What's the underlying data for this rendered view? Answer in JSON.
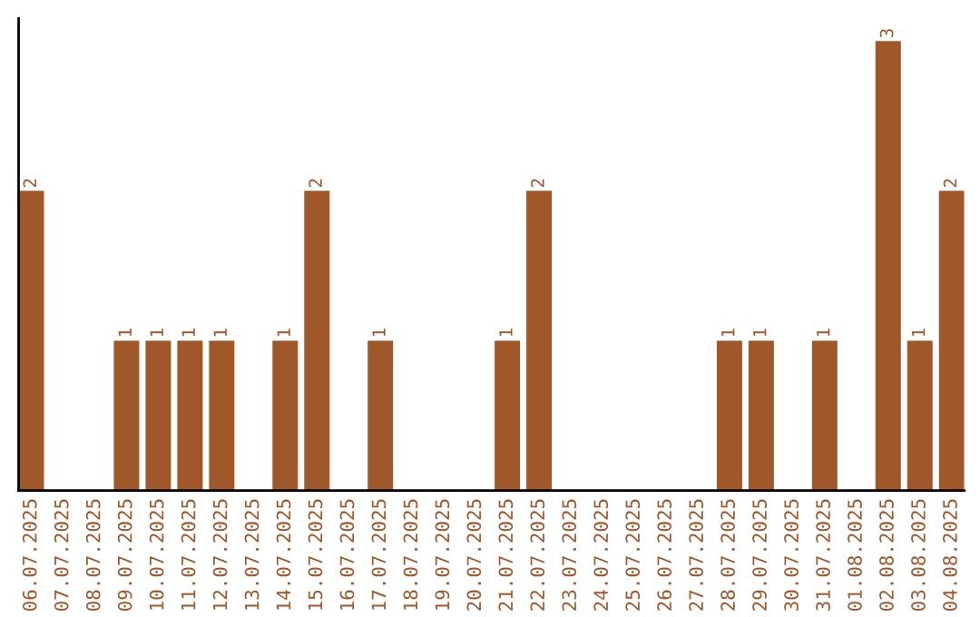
{
  "chart_data": {
    "type": "bar",
    "categories": [
      "06.07.2025",
      "07.07.2025",
      "08.07.2025",
      "09.07.2025",
      "10.07.2025",
      "11.07.2025",
      "12.07.2025",
      "13.07.2025",
      "14.07.2025",
      "15.07.2025",
      "16.07.2025",
      "17.07.2025",
      "18.07.2025",
      "19.07.2025",
      "20.07.2025",
      "21.07.2025",
      "22.07.2025",
      "23.07.2025",
      "24.07.2025",
      "25.07.2025",
      "26.07.2025",
      "27.07.2025",
      "28.07.2025",
      "29.07.2025",
      "30.07.2025",
      "31.07.2025",
      "01.08.2025",
      "02.08.2025",
      "03.08.2025",
      "04.08.2025"
    ],
    "values": [
      2,
      0,
      0,
      1,
      1,
      1,
      1,
      0,
      1,
      2,
      0,
      1,
      0,
      0,
      0,
      1,
      2,
      0,
      0,
      0,
      0,
      0,
      1,
      1,
      0,
      1,
      0,
      3,
      1,
      2
    ],
    "value_labels": [
      "2",
      null,
      null,
      "1",
      "1",
      "1",
      "1",
      null,
      "1",
      "2",
      null,
      "1",
      null,
      null,
      null,
      "1",
      "2",
      null,
      null,
      null,
      null,
      null,
      "1",
      "1",
      null,
      "1",
      null,
      "3",
      "1",
      "2"
    ],
    "color": "#a0572a",
    "tick_labels": "x",
    "grid": false,
    "legend": false
  }
}
